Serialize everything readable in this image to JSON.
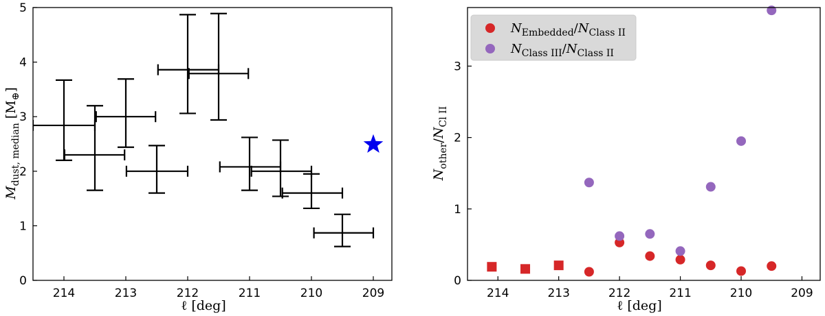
{
  "chart_data": [
    {
      "type": "scatter",
      "title": "",
      "xlabel": "ℓ [deg]",
      "ylabel": "M_dust, median [M⊕]",
      "xlim": [
        214.5,
        208.7
      ],
      "ylim": [
        0,
        5
      ],
      "x_inverted": true,
      "xticks": [
        214,
        213,
        212,
        211,
        210,
        209
      ],
      "yticks": [
        0,
        1,
        2,
        3,
        4,
        5
      ],
      "series": [
        {
          "marker": "errorbar",
          "color": "#000000",
          "points": [
            {
              "x": 214.0,
              "y": 2.84,
              "x_lo": 214.5,
              "x_hi": 213.5,
              "y_lo": 2.2,
              "y_hi": 3.67
            },
            {
              "x": 213.5,
              "y": 2.3,
              "x_lo": 213.99,
              "x_hi": 213.02,
              "y_lo": 1.65,
              "y_hi": 3.2
            },
            {
              "x": 213.0,
              "y": 3.0,
              "x_lo": 213.48,
              "x_hi": 212.52,
              "y_lo": 2.44,
              "y_hi": 3.69
            },
            {
              "x": 212.5,
              "y": 2.0,
              "x_lo": 212.99,
              "x_hi": 212.0,
              "y_lo": 1.6,
              "y_hi": 2.47
            },
            {
              "x": 212.0,
              "y": 3.86,
              "x_lo": 212.48,
              "x_hi": 211.5,
              "y_lo": 3.06,
              "y_hi": 4.87
            },
            {
              "x": 211.5,
              "y": 3.79,
              "x_lo": 211.98,
              "x_hi": 211.02,
              "y_lo": 2.94,
              "y_hi": 4.89
            },
            {
              "x": 211.0,
              "y": 2.08,
              "x_lo": 211.48,
              "x_hi": 210.5,
              "y_lo": 1.65,
              "y_hi": 2.62
            },
            {
              "x": 210.5,
              "y": 2.0,
              "x_lo": 210.97,
              "x_hi": 210.0,
              "y_lo": 1.54,
              "y_hi": 2.57
            },
            {
              "x": 210.0,
              "y": 1.6,
              "x_lo": 210.47,
              "x_hi": 209.5,
              "y_lo": 1.32,
              "y_hi": 1.95
            },
            {
              "x": 209.5,
              "y": 0.87,
              "x_lo": 209.96,
              "x_hi": 209.0,
              "y_lo": 0.62,
              "y_hi": 1.21
            }
          ]
        },
        {
          "marker": "star",
          "color": "#0000ee",
          "points": [
            {
              "x": 209.0,
              "y": 2.49
            }
          ]
        }
      ]
    },
    {
      "type": "scatter",
      "title": "",
      "xlabel": "ℓ [deg]",
      "ylabel": "N_other / N_Cl II",
      "xlim": [
        214.5,
        208.7
      ],
      "ylim": [
        0,
        3.82
      ],
      "x_inverted": true,
      "xticks": [
        214,
        213,
        212,
        211,
        210,
        209
      ],
      "yticks": [
        0,
        1,
        2,
        3
      ],
      "legend": {
        "placement": "top-left",
        "entries": [
          {
            "base": "N",
            "sub": "Embedded",
            "sep": "/",
            "base2": "N",
            "sub2": "Class II",
            "color": "#d62728"
          },
          {
            "base": "N",
            "sub": "Class III",
            "sep": "/",
            "base2": "N",
            "sub2": "Class II",
            "color": "#9467bd"
          }
        ]
      },
      "series": [
        {
          "name": "N_Embedded/N_Class II",
          "color": "#d62728",
          "points": [
            {
              "x": 214.1,
              "y": 0.19,
              "marker": "square"
            },
            {
              "x": 213.55,
              "y": 0.16,
              "marker": "square"
            },
            {
              "x": 213.0,
              "y": 0.21,
              "marker": "square"
            },
            {
              "x": 212.5,
              "y": 0.12,
              "marker": "circle"
            },
            {
              "x": 212.0,
              "y": 0.53,
              "marker": "circle"
            },
            {
              "x": 211.5,
              "y": 0.34,
              "marker": "circle"
            },
            {
              "x": 211.0,
              "y": 0.29,
              "marker": "circle"
            },
            {
              "x": 210.5,
              "y": 0.21,
              "marker": "circle"
            },
            {
              "x": 210.0,
              "y": 0.13,
              "marker": "circle"
            },
            {
              "x": 209.5,
              "y": 0.2,
              "marker": "circle"
            }
          ]
        },
        {
          "name": "N_Class III/N_Class II",
          "color": "#9467bd",
          "points": [
            {
              "x": 212.5,
              "y": 1.37,
              "marker": "circle"
            },
            {
              "x": 212.0,
              "y": 0.62,
              "marker": "circle"
            },
            {
              "x": 211.5,
              "y": 0.65,
              "marker": "circle"
            },
            {
              "x": 211.0,
              "y": 0.41,
              "marker": "circle"
            },
            {
              "x": 210.5,
              "y": 1.31,
              "marker": "circle"
            },
            {
              "x": 210.0,
              "y": 1.95,
              "marker": "circle"
            },
            {
              "x": 209.5,
              "y": 3.78,
              "marker": "circle"
            }
          ]
        }
      ]
    }
  ]
}
